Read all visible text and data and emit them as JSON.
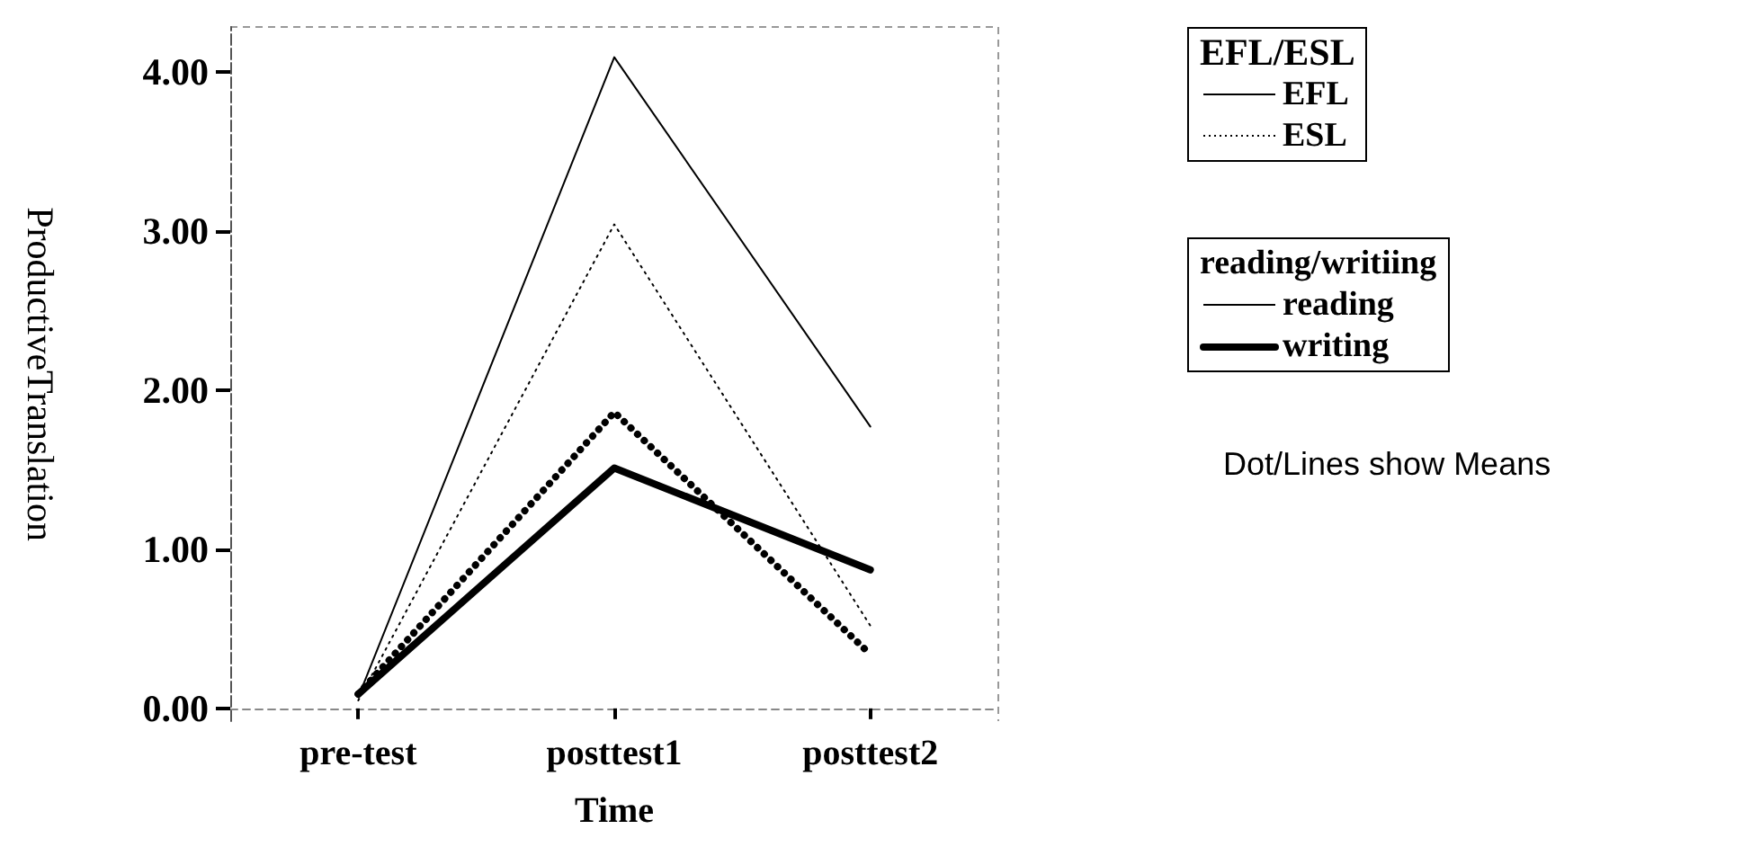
{
  "chart_data": {
    "type": "line",
    "xlabel": "Time",
    "ylabel": "ProductiveTranslation",
    "categories": [
      "pre-test",
      "posttest1",
      "posttest2"
    ],
    "ylim": [
      -0.08,
      4.28
    ],
    "yticks": [
      {
        "value": 0,
        "label": "0.00"
      },
      {
        "value": 1,
        "label": "1.00"
      },
      {
        "value": 2,
        "label": "2.00"
      },
      {
        "value": 3,
        "label": "3.00"
      },
      {
        "value": 4,
        "label": "4.00"
      }
    ],
    "series": [
      {
        "color": "#000000",
        "line_style": "solid",
        "values": [
          0.07,
          4.09,
          1.77
        ]
      },
      {
        "color": "#000000",
        "line_style": "dotted",
        "values": [
          0.05,
          3.04,
          0.52
        ]
      },
      {
        "color": "#000000",
        "line_style": "solid",
        "values": [
          0.09,
          1.51,
          0.87
        ]
      },
      {
        "color": "#000000",
        "line_style": "dotted",
        "values": [
          0.09,
          1.86,
          0.34
        ]
      }
    ],
    "annotations": [
      "EFL/ESL",
      "EFL",
      "ESL",
      "reading/writiing",
      "reading",
      "writing",
      "Dot/Lines show Means"
    ],
    "marker": "none"
  }
}
